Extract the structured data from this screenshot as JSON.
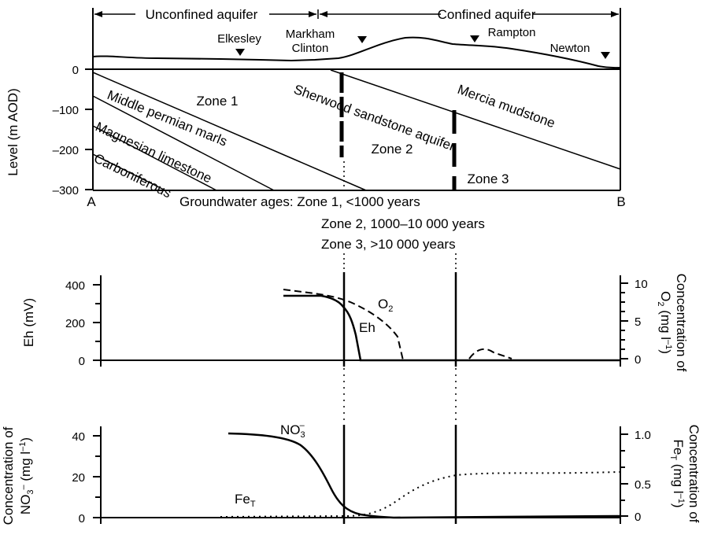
{
  "cross_section": {
    "ylabel": "Level (m AOD)",
    "yticks": [
      "0",
      "–100",
      "–200",
      "–300"
    ],
    "end_a": "A",
    "end_b": "B",
    "unconfined": "Unconfined aquifer",
    "confined": "Confined aquifer",
    "places": {
      "elkesley": "Elkesley",
      "markham1": "Markham",
      "markham2": "Clinton",
      "rampton": "Rampton",
      "newton": "Newton"
    },
    "layers": {
      "zone1": "Zone 1",
      "zone2": "Zone 2",
      "zone3": "Zone 3",
      "sherwood": "Sherwood sandstone aquifer",
      "mercia": "Mercia mudstone",
      "permian": "Middle permian marls",
      "magnesian": "Magnesian limestone",
      "carboniferous": "Carboniferous"
    },
    "ages": {
      "line1": "Groundwater ages: Zone 1, <1000 years",
      "line2": "Zone 2, 1000–10 000 years",
      "line3": "Zone 3, >10 000 years"
    }
  },
  "eh_panel": {
    "ylabel": "Eh (mV)",
    "yticks": [
      "400",
      "200",
      "0"
    ],
    "rticks": [
      "10",
      "5",
      "0"
    ],
    "rlabel_1": "Concentration of",
    "rlabel_2": "O",
    "rlabel_2_sub": "2",
    "rlabel_3": " (mg l",
    "rlabel_3_sup": "–1",
    "rlabel_4": ")",
    "o2_label": "O",
    "o2_sub": "2",
    "eh_label": "Eh"
  },
  "no3_panel": {
    "ylabel_1": "Concentration of",
    "ylabel_2": "NO",
    "ylabel_2_sub": "3",
    "ylabel_2_sup": "–",
    "ylabel_3": "  (mg l",
    "ylabel_3_sup": "–1",
    "ylabel_4": ")",
    "yticks": [
      "40",
      "20",
      "0"
    ],
    "rticks": [
      "1.0",
      "0.5",
      "0"
    ],
    "rlabel_1": "Concentration of",
    "rlabel_2": "Fe",
    "rlabel_2_sub": "T",
    "rlabel_3": " (mg l",
    "rlabel_3_sup": "–1",
    "rlabel_4": ")",
    "no3_label": "NO",
    "no3_sub": "3",
    "no3_sup": "–",
    "fe_label": "Fe",
    "fe_sub": "T"
  }
}
